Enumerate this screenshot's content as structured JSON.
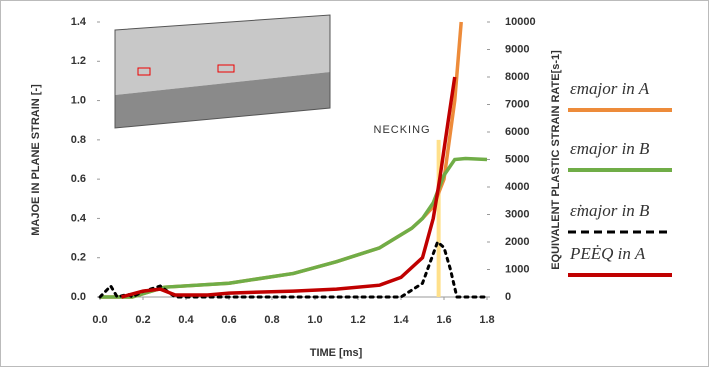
{
  "chart_data": {
    "type": "line",
    "xlabel": "TIME [ms]",
    "ylabel": "MAJOE IN PLANE STRAIN [-]",
    "y2label": "EQUIVALENT PLASTIC STRAIN RATE[s-1]",
    "xlim": [
      0,
      1.8
    ],
    "xticks": [
      {
        "value": 0,
        "label": "0.0"
      },
      0.2,
      0.4,
      0.6,
      0.8,
      {
        "value": 1,
        "label": "1.0"
      },
      1.2,
      1.4,
      1.6,
      1.8
    ],
    "ylim": [
      0,
      1.4
    ],
    "yticks": [
      {
        "value": 0,
        "label": "0.0"
      },
      0.2,
      0.4,
      0.6,
      0.8,
      {
        "value": 1,
        "label": "1.0"
      },
      1.2,
      1.4
    ],
    "y2lim": [
      0,
      10000
    ],
    "y2ticks": [
      0,
      1000,
      2000,
      3000,
      4000,
      5000,
      6000,
      7000,
      8000,
      9000,
      10000
    ],
    "annotation": {
      "text": "NECKING",
      "x": 1.575,
      "color": "#ffe08a"
    },
    "series": [
      {
        "name": "εmajor in A",
        "color": "#ed8b3a",
        "dash": false,
        "x": [
          0,
          0.15,
          0.3,
          0.6,
          0.9,
          1.1,
          1.3,
          1.45,
          1.5,
          1.55,
          1.6,
          1.65,
          1.68
        ],
        "values": [
          0,
          0,
          0.05,
          0.07,
          0.12,
          0.18,
          0.25,
          0.35,
          0.4,
          0.46,
          0.6,
          1.0,
          1.4
        ]
      },
      {
        "name": "εmajor in B",
        "color": "#70ad47",
        "dash": false,
        "x": [
          0,
          0.15,
          0.3,
          0.6,
          0.9,
          1.1,
          1.3,
          1.45,
          1.5,
          1.55,
          1.6,
          1.65,
          1.7,
          1.8
        ],
        "values": [
          0,
          0,
          0.05,
          0.07,
          0.12,
          0.18,
          0.25,
          0.35,
          0.4,
          0.48,
          0.62,
          0.7,
          0.705,
          0.7
        ]
      },
      {
        "name": "ε̇major in B",
        "color": "#000000",
        "dash": true,
        "axis": "y2",
        "x": [
          0,
          0.05,
          0.08,
          0.13,
          0.15,
          0.2,
          0.28,
          0.35,
          1.4,
          1.5,
          1.57,
          1.6,
          1.63,
          1.66,
          1.8
        ],
        "values": [
          0,
          400,
          0,
          100,
          0,
          200,
          400,
          0,
          0,
          500,
          2000,
          1800,
          1000,
          0,
          0
        ]
      },
      {
        "name": "PEĖQ in A",
        "color": "#c00000",
        "dash": false,
        "x": [
          0.1,
          0.2,
          0.28,
          0.35,
          0.5,
          0.6,
          0.9,
          1.1,
          1.3,
          1.4,
          1.5,
          1.55,
          1.58,
          1.62,
          1.65
        ],
        "values": [
          0,
          0.03,
          0.04,
          0.01,
          0.01,
          0.02,
          0.03,
          0.04,
          0.06,
          0.1,
          0.2,
          0.4,
          0.6,
          0.9,
          1.12
        ]
      }
    ]
  }
}
